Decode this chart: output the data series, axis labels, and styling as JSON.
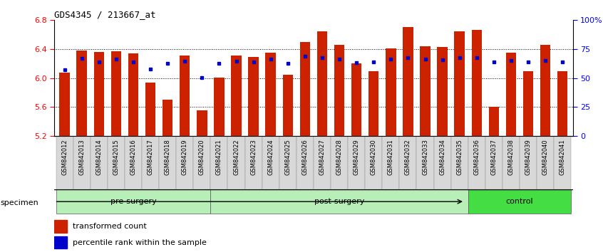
{
  "title": "GDS4345 / 213667_at",
  "samples": [
    "GSM842012",
    "GSM842013",
    "GSM842014",
    "GSM842015",
    "GSM842016",
    "GSM842017",
    "GSM842018",
    "GSM842019",
    "GSM842020",
    "GSM842021",
    "GSM842022",
    "GSM842023",
    "GSM842024",
    "GSM842025",
    "GSM842026",
    "GSM842027",
    "GSM842028",
    "GSM842029",
    "GSM842030",
    "GSM842031",
    "GSM842032",
    "GSM842033",
    "GSM842034",
    "GSM842035",
    "GSM842036",
    "GSM842037",
    "GSM842038",
    "GSM842039",
    "GSM842040",
    "GSM842041"
  ],
  "bar_values": [
    6.08,
    6.38,
    6.36,
    6.37,
    6.34,
    5.94,
    5.7,
    6.31,
    5.56,
    6.01,
    6.31,
    6.29,
    6.35,
    6.05,
    6.5,
    6.65,
    6.46,
    6.2,
    6.1,
    6.41,
    6.7,
    6.44,
    6.43,
    6.65,
    6.67,
    5.6,
    6.35,
    6.1,
    6.46,
    6.1
  ],
  "blue_values": [
    6.12,
    6.27,
    6.22,
    6.26,
    6.22,
    6.13,
    6.2,
    6.23,
    6.01,
    6.2,
    6.23,
    6.22,
    6.26,
    6.2,
    6.3,
    6.28,
    6.26,
    6.21,
    6.22,
    6.26,
    6.28,
    6.26,
    6.25,
    6.28,
    6.28,
    6.22,
    6.24,
    6.22,
    6.24,
    6.22
  ],
  "bar_color": "#CC2200",
  "blue_color": "#0000CC",
  "ylim_min": 5.2,
  "ylim_max": 6.8,
  "yticks": [
    5.2,
    5.6,
    6.0,
    6.4,
    6.8
  ],
  "right_pct_ticks": [
    0,
    25,
    50,
    75,
    100
  ],
  "right_pct_labels": [
    "0",
    "25",
    "50",
    "75",
    "100%"
  ],
  "bar_bottom": 5.2,
  "bar_width": 0.6,
  "legend_red": "transformed count",
  "legend_blue": "percentile rank within the sample",
  "group_info": [
    {
      "label": "pre-surgery",
      "start": 0,
      "end": 8,
      "color": "#b8efb8"
    },
    {
      "label": "post-surgery",
      "start": 9,
      "end": 23,
      "color": "#b8efb8"
    },
    {
      "label": "control",
      "start": 24,
      "end": 29,
      "color": "#44dd44"
    }
  ],
  "xlabel_bg": "#d8d8d8"
}
